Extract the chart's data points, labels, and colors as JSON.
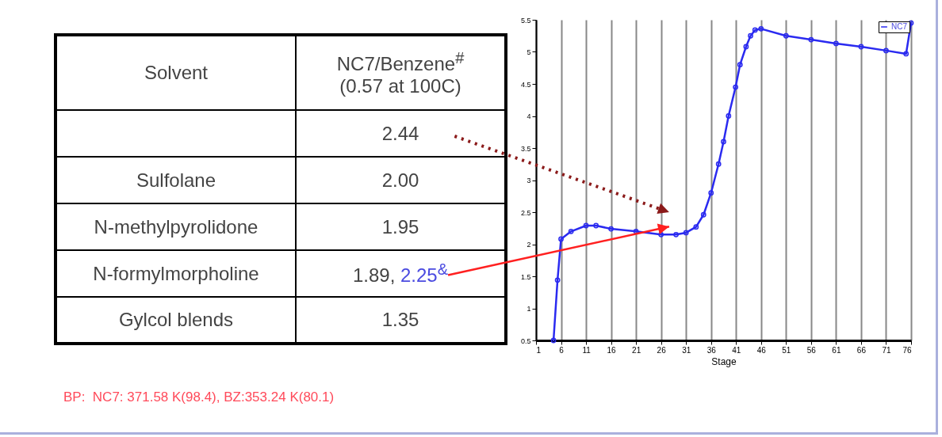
{
  "chart_data": [
    {
      "type": "other",
      "xlabel": "Solvent",
      "ylabel": "NC7/Benzene$^{#}$\n(0.57 at 100C)",
      "categories": [
        null,
        "Sulfolane",
        "N-methylpyrolidone",
        "N-formylmorpholine",
        "Gylcol blends"
      ],
      "value_labels": [
        "2.44",
        "2.00",
        "1.95",
        "1.89, 2.25$^{&}$",
        "1.35"
      ],
      "annotations": [
        "BP:  NC7: 371.58 K(98.4), BZ:353.24 K(80.1)"
      ]
    },
    {
      "type": "line",
      "xlabel": "Stage",
      "x": [
        4.5,
        5.3,
        6,
        8,
        11,
        13,
        16,
        21,
        26,
        29,
        31,
        33,
        34.5,
        36,
        37.5,
        38.5,
        39.5,
        40.9,
        41.8,
        43,
        43.9,
        44.8,
        46,
        51,
        56,
        61,
        66,
        71,
        75,
        76
      ],
      "series": [
        {
          "name": "NC7",
          "color": "#2a2af0",
          "values": [
            0.5,
            1.44,
            2.08,
            2.2,
            2.29,
            2.29,
            2.24,
            2.2,
            2.15,
            2.15,
            2.18,
            2.27,
            2.46,
            2.8,
            3.25,
            3.6,
            4.0,
            4.45,
            4.8,
            5.08,
            5.25,
            5.34,
            5.36,
            5.25,
            5.19,
            5.13,
            5.08,
            5.02,
            4.97,
            5.45
          ]
        }
      ],
      "xlim": [
        1,
        76
      ],
      "xticks": [
        1,
        6,
        11,
        16,
        21,
        26,
        31,
        36,
        41,
        46,
        51,
        56,
        61,
        66,
        71,
        76
      ],
      "ylim": [
        0.5,
        5.5
      ],
      "yticks": [
        0.5,
        1,
        1.5,
        2,
        2.5,
        3,
        3.5,
        4,
        4.5,
        5,
        5.5
      ],
      "grid": "x",
      "legend": "top right",
      "marker": "circle"
    }
  ]
}
